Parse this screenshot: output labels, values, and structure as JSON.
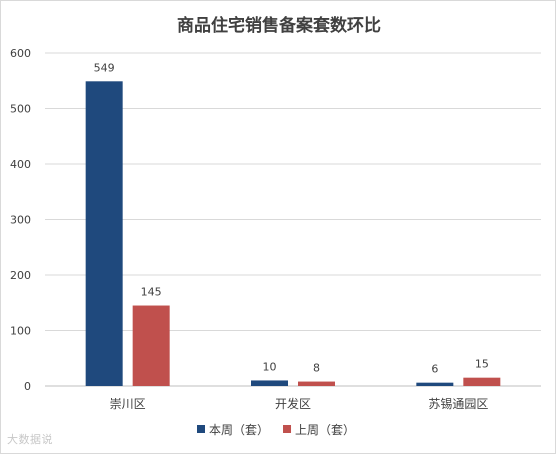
{
  "chart_data": {
    "type": "bar",
    "title": "商品住宅销售备案套数环比",
    "categories": [
      "崇川区",
      "开发区",
      "苏锡通园区"
    ],
    "series": [
      {
        "name": "本周（套）",
        "values": [
          549,
          10,
          6
        ],
        "color": "#1f497d"
      },
      {
        "name": "上周（套）",
        "values": [
          145,
          8,
          15
        ],
        "color": "#c0504d"
      }
    ],
    "ylim": [
      0,
      600
    ],
    "yticks": [
      0,
      100,
      200,
      300,
      400,
      500,
      600
    ],
    "grid": true,
    "legend": "bottom"
  },
  "watermark": "大数据说"
}
